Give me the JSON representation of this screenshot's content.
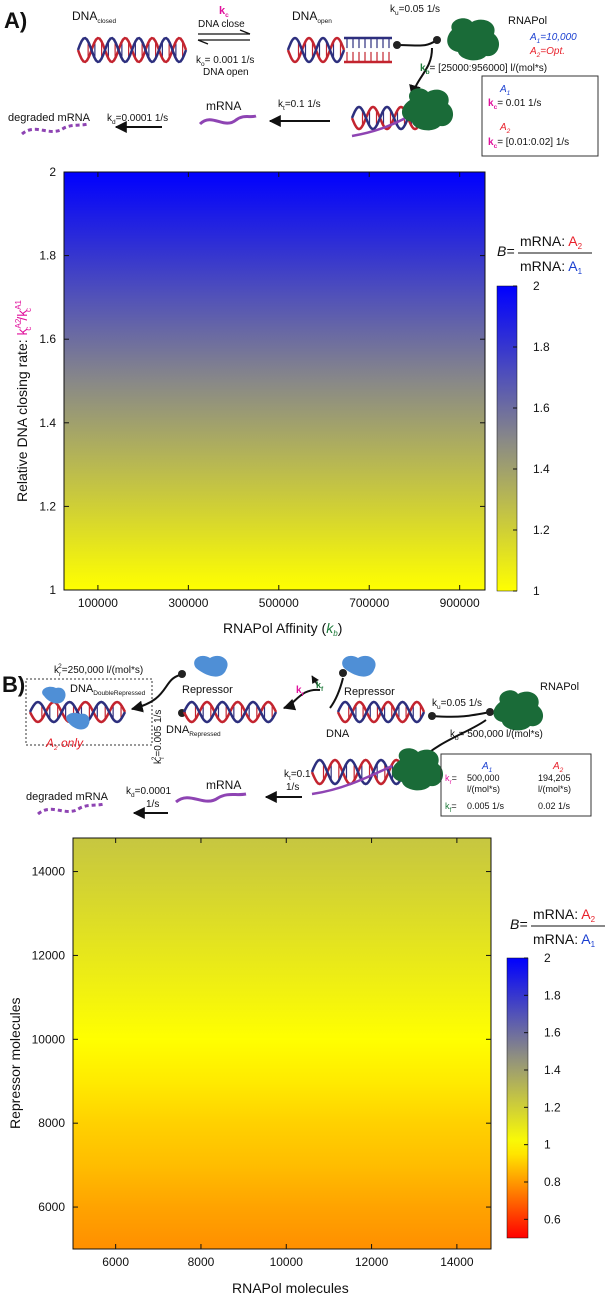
{
  "panel_a": {
    "label": "A)",
    "diagram": {
      "dna_closed": "DNA",
      "dna_closed_sub": "closed",
      "dna_open": "DNA",
      "dna_open_sub": "open",
      "kc_symbol": "k",
      "kc_sub": "c",
      "dna_close_label": "DNA close",
      "ko_symbol": "k",
      "ko_sub": "o",
      "ko_value": "= 0.001 1/s",
      "dna_open_label": "DNA open",
      "ku_symbol": "k",
      "ku_sub": "u",
      "ku_value": "=0.05 1/s",
      "rnapol": "RNAPol",
      "a1_rnapol": "A",
      "a1_rnapol_sub": "1",
      "a1_rnapol_value": "=10,000",
      "a2_rnapol": "A",
      "a2_rnapol_sub": "2",
      "a2_rnapol_value": "=Opt.",
      "kb_symbol": "k",
      "kb_sub": "b",
      "kb_value": "= [25000:956000] l/(mol*s)",
      "kt_symbol": "k",
      "kt_sub": "t",
      "kt_value": "=0.1 1/s",
      "mrna": "mRNA",
      "degraded": "degraded mRNA",
      "kd_symbol": "k",
      "kd_sub": "d",
      "kd_value": "=0.0001 1/s",
      "box_a1": "A",
      "box_a1_sub": "1",
      "box_kc1_symbol": "k",
      "box_kc1_sub": "c",
      "box_kc1_value": "= 0.01 1/s",
      "box_a2": "A",
      "box_a2_sub": "2",
      "box_kc2_symbol": "k",
      "box_kc2_sub": "c",
      "box_kc2_value": "= [0.01:0.02] 1/s"
    }
  },
  "panel_b": {
    "label": "B)",
    "diagram": {
      "k2_symbol": "k",
      "k2_sub": "r",
      "k2_sup": "2",
      "k2_value": "=250,000 l/(mol*s)",
      "dna_double": "DNA",
      "dna_double_sub": "DoubleRepressed",
      "a2_only": "A",
      "a2_only_sub": "2",
      "a2_only_rest": " only",
      "kf2_symbol": "k",
      "kf2_sub": "f",
      "kf2_sup": "2",
      "kf2_value": "=0.005 1/s",
      "repressor_left": "Repressor",
      "dna_repressed": "DNA",
      "dna_repressed_sub": "Repressed",
      "kr_symbol": "k",
      "kr_sub": "r",
      "kf_symbol": "k",
      "kf_sub": "f",
      "repressor_right": "Repressor",
      "dna": "DNA",
      "ku_symbol": "k",
      "ku_sub": "u",
      "ku_value": "=0.05 1/s",
      "rnapol": "RNAPol",
      "kb_symbol": "k",
      "kb_sub": "b",
      "kb_value": "= 500,000 l/(mol*s)",
      "kt_symbol": "k",
      "kt_sub": "t",
      "kt_value": "=0.1",
      "kt_unit": "1/s",
      "mrna": "mRNA",
      "degraded": "degraded mRNA",
      "kd_symbol": "k",
      "kd_sub": "d",
      "kd_value": "=0.0001",
      "kd_unit": "1/s",
      "tbl_a1": "A",
      "tbl_a1_sub": "1",
      "tbl_a2": "A",
      "tbl_a2_sub": "2",
      "tbl_kr_symbol": "k",
      "tbl_kr_sub": "r",
      "tbl_kr_eq": "=",
      "tbl_kr_a1": "500,000",
      "tbl_kr_a2": "194,205",
      "tbl_unit": "l/(mol*s)",
      "tbl_kf_symbol": "k",
      "tbl_kf_sub": "f",
      "tbl_kf_eq": "=",
      "tbl_kf_a1": "0.005 1/s",
      "tbl_kf_a2": "0.02 1/s"
    }
  },
  "colors": {
    "magenta": "#e0119c",
    "green": "#1e7a3a",
    "red": "#e8202a",
    "blue": "#1a3fd0",
    "dna_red": "#c3242f",
    "dna_navy": "#2d2f7e",
    "rnapol": "#1a6b38",
    "repressor": "#4f8fd6",
    "mrna": "#8e44b3"
  },
  "chart_data": [
    {
      "type": "heatmap",
      "panel": "A",
      "xlabel": "RNAPol Affinity (",
      "xlabel_symbol": "k",
      "xlabel_sub": "b",
      "xlabel_close": ")",
      "ylabel_text": "Relative DNA closing rate: ",
      "ylabel_num": "k",
      "ylabel_num_sup": "A2",
      "ylabel_num_sub": "c",
      "ylabel_slash": "/",
      "ylabel_den": "k",
      "ylabel_den_sup": "A1",
      "ylabel_den_sub": "c",
      "xlim": [
        25000,
        956000
      ],
      "ylim": [
        1,
        2
      ],
      "xticks": [
        100000,
        300000,
        500000,
        700000,
        900000
      ],
      "xtick_labels": [
        "100000",
        "300000",
        "500000",
        "700000",
        "900000"
      ],
      "yticks": [
        1,
        1.2,
        1.4,
        1.6,
        1.8,
        2
      ],
      "ytick_labels": [
        "1",
        "1.2",
        "1.4",
        "1.6",
        "1.8",
        "2"
      ],
      "gradient_note": "B varies with y only",
      "y_values": [
        1.0,
        1.1,
        1.2,
        1.3,
        1.4,
        1.5,
        1.6,
        1.7,
        1.8,
        1.9,
        2.0
      ],
      "B_values": [
        1.0,
        1.1,
        1.2,
        1.3,
        1.4,
        1.5,
        1.6,
        1.7,
        1.8,
        1.9,
        2.0
      ],
      "colorbar": {
        "range": [
          1,
          2
        ],
        "ticks": [
          1,
          1.2,
          1.4,
          1.6,
          1.8,
          2
        ],
        "tick_labels": [
          "1",
          "1.2",
          "1.4",
          "1.6",
          "1.8",
          "2"
        ],
        "stops": [
          {
            "value": 1.0,
            "color": "#ffff00"
          },
          {
            "value": 1.5,
            "color": "#888888"
          },
          {
            "value": 2.0,
            "color": "#0000ff"
          }
        ]
      },
      "b_label": "B=",
      "b_num": "mRNA: ",
      "b_num_a": "A",
      "b_num_sub": "2",
      "b_den": "mRNA: ",
      "b_den_a": "A",
      "b_den_sub": "1"
    },
    {
      "type": "heatmap",
      "panel": "B",
      "xlabel": "RNAPol molecules",
      "ylabel": "Repressor molecules",
      "xlim": [
        5000,
        14800
      ],
      "ylim": [
        5000,
        14800
      ],
      "xticks": [
        6000,
        8000,
        10000,
        12000,
        14000
      ],
      "xtick_labels": [
        "6000",
        "8000",
        "10000",
        "12000",
        "14000"
      ],
      "yticks": [
        6000,
        8000,
        10000,
        12000,
        14000
      ],
      "ytick_labels": [
        "6000",
        "8000",
        "10000",
        "12000",
        "14000"
      ],
      "gradient_note": "B varies with y only",
      "y_values": [
        5000,
        6000,
        7000,
        8000,
        9000,
        10000,
        11000,
        12000,
        13000,
        14000,
        14800
      ],
      "B_values": [
        0.78,
        0.82,
        0.87,
        0.91,
        0.96,
        1.0,
        1.05,
        1.1,
        1.15,
        1.2,
        1.24
      ],
      "colorbar": {
        "range": [
          0.5,
          2
        ],
        "ticks": [
          0.6,
          0.8,
          1,
          1.2,
          1.4,
          1.6,
          1.8,
          2
        ],
        "tick_labels": [
          "0.6",
          "0.8",
          "1",
          "1.2",
          "1.4",
          "1.6",
          "1.8",
          "2"
        ],
        "stops": [
          {
            "value": 0.5,
            "color": "#ff0000"
          },
          {
            "value": 1.0,
            "color": "#ffff00"
          },
          {
            "value": 1.5,
            "color": "#888888"
          },
          {
            "value": 2.0,
            "color": "#0000ff"
          }
        ]
      },
      "b_label": "B=",
      "b_num": "mRNA: ",
      "b_num_a": "A",
      "b_num_sub": "2",
      "b_den": "mRNA: ",
      "b_den_a": "A",
      "b_den_sub": "1"
    }
  ]
}
